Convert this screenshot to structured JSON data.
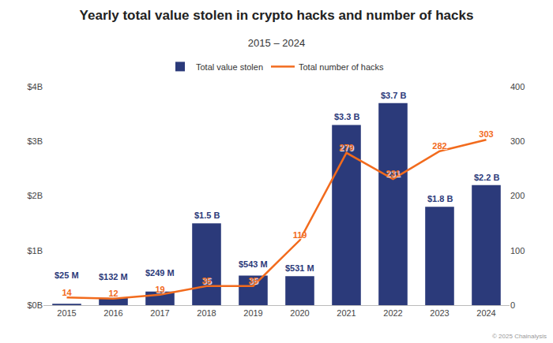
{
  "chart_data": {
    "type": "bar",
    "title": "Yearly total value stolen in crypto hacks and number of hacks",
    "subtitle": "2015 – 2024",
    "source": "© 2025 Chainalysis",
    "categories": [
      "2015",
      "2016",
      "2017",
      "2018",
      "2019",
      "2020",
      "2021",
      "2022",
      "2023",
      "2024"
    ],
    "series": [
      {
        "name": "Total value stolen",
        "type": "bar",
        "color": "#2b3a7a",
        "values": [
          0.025,
          0.132,
          0.249,
          1.5,
          0.543,
          0.531,
          3.3,
          3.7,
          1.8,
          2.2
        ],
        "value_labels": [
          "$25 M",
          "$132 M",
          "$249 M",
          "$1.5 B",
          "$543 M",
          "$531 M",
          "$3.3 B",
          "$3.7 B",
          "$1.8 B",
          "$2.2 B"
        ]
      },
      {
        "name": "Total number of hacks",
        "type": "line",
        "color": "#f26b1d",
        "axis": "y2",
        "values": [
          14,
          12,
          19,
          35,
          35,
          119,
          279,
          231,
          282,
          303
        ]
      }
    ],
    "ylim": [
      0,
      4
    ],
    "yticks": [
      {
        "value": 0,
        "label": "$0B"
      },
      {
        "value": 1,
        "label": "$1B"
      },
      {
        "value": 2,
        "label": "$2B"
      },
      {
        "value": 3,
        "label": "$3B"
      },
      {
        "value": 4,
        "label": "$4B"
      }
    ],
    "y2lim": [
      0,
      400
    ],
    "y2ticks": [
      0,
      100,
      200,
      300,
      400
    ],
    "grid": false,
    "legend": "top",
    "data_labels": true
  }
}
